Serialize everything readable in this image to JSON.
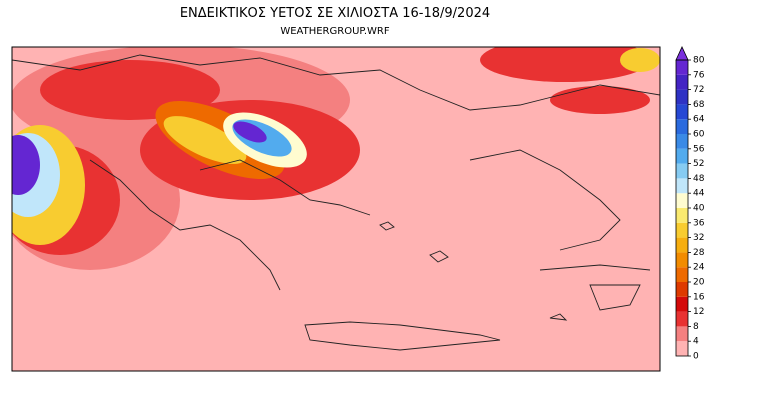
{
  "header": {
    "title": "ΕΝΔΕΙΚΤΙΚΟΣ ΥΕΤΟΣ ΣΕ ΧΙΛΙΟΣΤΑ 16-18/9/2024",
    "subtitle": "WEATHERGROUP.WRF"
  },
  "colorbar": {
    "ticks": [
      0,
      4,
      8,
      12,
      16,
      20,
      24,
      28,
      32,
      36,
      40,
      44,
      48,
      52,
      56,
      60,
      64,
      68,
      72,
      76,
      80
    ],
    "colors": [
      "#ffb3b3",
      "#f48080",
      "#e83232",
      "#d40a0a",
      "#de3a00",
      "#ee6a00",
      "#f28c00",
      "#f6ae10",
      "#f8cc30",
      "#faea70",
      "#fffcd0",
      "#c0e6fa",
      "#86cbf2",
      "#52abee",
      "#3a8ae6",
      "#2a6ade",
      "#2648d4",
      "#2e32c4",
      "#4424c4",
      "#6426d2"
    ],
    "extend_color": "#7a30dc"
  }
}
